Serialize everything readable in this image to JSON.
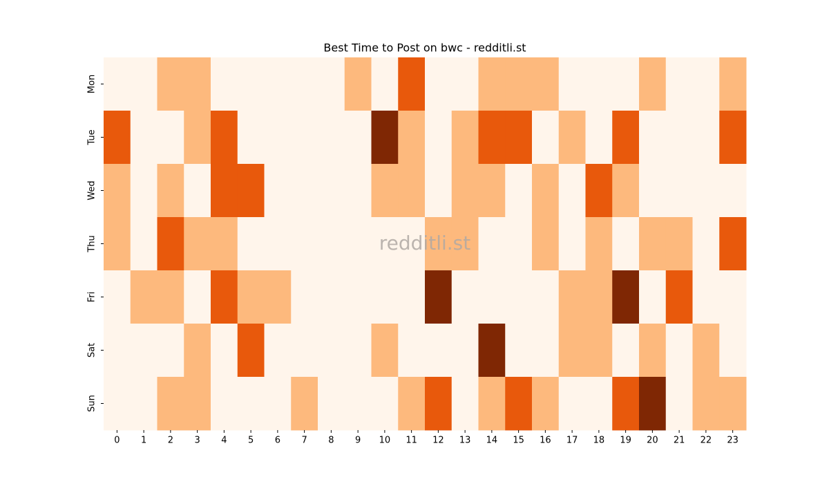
{
  "chart_data": {
    "type": "heatmap",
    "title": "Best Time to Post on bwc - redditli.st",
    "watermark": "redditli.st",
    "x_categories": [
      "0",
      "1",
      "2",
      "3",
      "4",
      "5",
      "6",
      "7",
      "8",
      "9",
      "10",
      "11",
      "12",
      "13",
      "14",
      "15",
      "16",
      "17",
      "18",
      "19",
      "20",
      "21",
      "22",
      "23"
    ],
    "y_categories": [
      "Mon",
      "Tue",
      "Wed",
      "Thu",
      "Fri",
      "Sat",
      "Sun"
    ],
    "values": [
      [
        0,
        0,
        1,
        1,
        0,
        0,
        0,
        0,
        0,
        1,
        0,
        2,
        0,
        0,
        1,
        1,
        1,
        0,
        0,
        0,
        1,
        0,
        0,
        1
      ],
      [
        2,
        0,
        0,
        1,
        2,
        0,
        0,
        0,
        0,
        0,
        3,
        1,
        0,
        1,
        2,
        2,
        0,
        1,
        0,
        2,
        0,
        0,
        0,
        2
      ],
      [
        1,
        0,
        1,
        0,
        2,
        2,
        0,
        0,
        0,
        0,
        1,
        1,
        0,
        1,
        1,
        0,
        1,
        0,
        2,
        1,
        0,
        0,
        0,
        0
      ],
      [
        1,
        0,
        2,
        1,
        1,
        0,
        0,
        0,
        0,
        0,
        0,
        0,
        1,
        1,
        0,
        0,
        1,
        0,
        1,
        0,
        1,
        1,
        0,
        2
      ],
      [
        0,
        1,
        1,
        0,
        2,
        1,
        1,
        0,
        0,
        0,
        0,
        0,
        3,
        0,
        0,
        0,
        0,
        1,
        1,
        3,
        0,
        2,
        0,
        0
      ],
      [
        0,
        0,
        0,
        1,
        0,
        2,
        0,
        0,
        0,
        0,
        1,
        0,
        0,
        0,
        3,
        0,
        0,
        1,
        1,
        0,
        1,
        0,
        1,
        0
      ],
      [
        0,
        0,
        1,
        1,
        0,
        0,
        0,
        1,
        0,
        0,
        0,
        1,
        2,
        0,
        1,
        2,
        1,
        0,
        0,
        2,
        3,
        0,
        1,
        1
      ]
    ],
    "zlim": [
      0,
      3
    ],
    "colors": [
      "#fff5eb",
      "#fdb97d",
      "#e8590c",
      "#7f2704"
    ]
  }
}
